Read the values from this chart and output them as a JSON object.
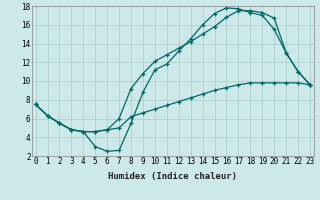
{
  "xlabel": "Humidex (Indice chaleur)",
  "bg_color": "#cce8e8",
  "grid_color": "#aacccc",
  "line_color": "#006666",
  "line1_x": [
    0,
    1,
    2,
    3,
    4,
    5,
    6,
    7,
    8,
    9,
    10,
    11,
    12,
    13,
    14,
    15,
    16,
    17,
    18,
    19,
    20,
    21,
    22,
    23
  ],
  "line1_y": [
    7.5,
    6.3,
    5.5,
    4.8,
    4.6,
    3.0,
    2.5,
    2.6,
    5.5,
    8.8,
    11.2,
    11.8,
    13.2,
    14.5,
    16.0,
    17.2,
    17.8,
    17.7,
    17.3,
    17.0,
    15.5,
    13.0,
    11.0,
    9.6
  ],
  "line2_x": [
    0,
    1,
    2,
    3,
    4,
    5,
    6,
    7,
    8,
    9,
    10,
    11,
    12,
    13,
    14,
    15,
    16,
    17,
    18,
    19,
    20,
    21,
    22,
    23
  ],
  "line2_y": [
    7.5,
    6.3,
    5.5,
    4.8,
    4.6,
    4.6,
    4.8,
    6.0,
    9.2,
    10.8,
    12.1,
    12.8,
    13.5,
    14.2,
    15.0,
    15.8,
    16.8,
    17.5,
    17.5,
    17.3,
    16.7,
    13.0,
    11.0,
    9.6
  ],
  "line3_x": [
    0,
    1,
    2,
    3,
    4,
    5,
    6,
    7,
    8,
    9,
    10,
    11,
    12,
    13,
    14,
    15,
    16,
    17,
    18,
    19,
    20,
    21,
    22,
    23
  ],
  "line3_y": [
    7.5,
    6.3,
    5.5,
    4.8,
    4.6,
    4.6,
    4.8,
    5.0,
    6.2,
    6.6,
    7.0,
    7.4,
    7.8,
    8.2,
    8.6,
    9.0,
    9.3,
    9.6,
    9.8,
    9.8,
    9.8,
    9.8,
    9.8,
    9.6
  ],
  "xlim": [
    0,
    23
  ],
  "ylim": [
    2,
    18
  ],
  "xticks": [
    0,
    1,
    2,
    3,
    4,
    5,
    6,
    7,
    8,
    9,
    10,
    11,
    12,
    13,
    14,
    15,
    16,
    17,
    18,
    19,
    20,
    21,
    22,
    23
  ],
  "yticks": [
    2,
    4,
    6,
    8,
    10,
    12,
    14,
    16,
    18
  ],
  "tick_fontsize": 5.5,
  "xlabel_fontsize": 6.5
}
